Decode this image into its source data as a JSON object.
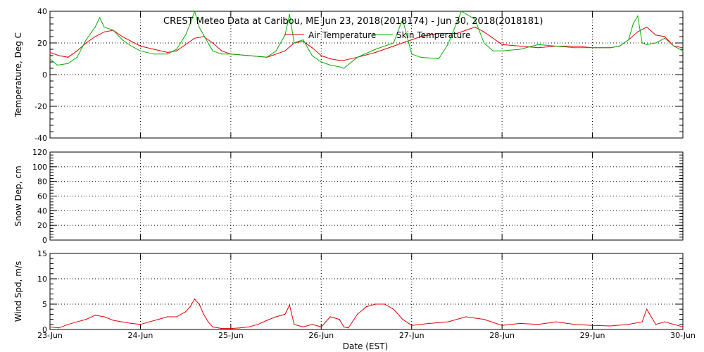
{
  "title": "CREST Meteo Data at Caribou, ME   Jun 23, 2018(2018174) - Jun 30, 2018(2018181)",
  "x_axis_label": "Date (EST)",
  "x_tick_labels": [
    "23-Jun",
    "24-Jun",
    "25-Jun",
    "26-Jun",
    "27-Jun",
    "28-Jun",
    "29-Jun",
    "30-Jun"
  ],
  "colors": {
    "air": "#e00000",
    "skin": "#00b000",
    "wind": "#e00000",
    "axis": "#000000",
    "grid": "#000000"
  },
  "chart_data": [
    {
      "type": "line",
      "panel": "temperature",
      "ylabel": "Temperature, Deg C",
      "ylim": [
        -40,
        40
      ],
      "y_ticks": [
        -40,
        -20,
        0,
        20,
        40
      ],
      "xlim": [
        0,
        7
      ],
      "x_unit": "days since 23-Jun 00:00 EST",
      "grid": true,
      "legend": "top-center",
      "series": [
        {
          "name": "Air Temperature",
          "color": "#e00000",
          "x": [
            0,
            0.1,
            0.2,
            0.3,
            0.4,
            0.5,
            0.6,
            0.7,
            0.8,
            1.0,
            1.15,
            1.3,
            1.4,
            1.5,
            1.6,
            1.7,
            1.8,
            1.9,
            2.0,
            2.2,
            2.4,
            2.6,
            2.7,
            2.8,
            2.9,
            3.0,
            3.1,
            3.2,
            3.25,
            3.4,
            3.6,
            3.8,
            4.0,
            4.1,
            4.3,
            4.5,
            4.6,
            4.7,
            4.8,
            5.0,
            5.2,
            5.4,
            5.6,
            5.8,
            6.0,
            6.2,
            6.3,
            6.4,
            6.5,
            6.6,
            6.7,
            6.8,
            6.9,
            7.0
          ],
          "y": [
            14,
            12,
            11,
            15,
            20,
            24,
            27,
            28,
            24,
            18,
            16,
            14,
            15,
            19,
            23,
            24,
            20,
            15,
            13,
            12,
            11,
            15,
            20,
            21,
            17,
            12,
            10,
            9,
            9,
            11,
            14,
            18,
            22,
            24,
            26,
            26,
            28,
            30,
            27,
            19,
            18,
            17,
            18,
            18,
            17,
            17,
            18,
            22,
            27,
            30,
            25,
            24,
            18,
            17
          ]
        },
        {
          "name": "Skin Temperature",
          "color": "#00b000",
          "x": [
            0,
            0.08,
            0.2,
            0.3,
            0.4,
            0.5,
            0.55,
            0.6,
            0.7,
            0.8,
            0.9,
            1.0,
            1.15,
            1.3,
            1.4,
            1.5,
            1.55,
            1.6,
            1.65,
            1.7,
            1.8,
            1.9,
            2.0,
            2.2,
            2.4,
            2.5,
            2.6,
            2.65,
            2.7,
            2.8,
            2.9,
            3.0,
            3.1,
            3.2,
            3.25,
            3.4,
            3.6,
            3.8,
            3.9,
            4.0,
            4.1,
            4.3,
            4.4,
            4.55,
            4.7,
            4.8,
            4.9,
            5.0,
            5.2,
            5.4,
            5.6,
            5.8,
            6.0,
            6.2,
            6.3,
            6.4,
            6.45,
            6.5,
            6.55,
            6.6,
            6.7,
            6.8,
            6.9,
            7.0
          ],
          "y": [
            10,
            6,
            7,
            11,
            22,
            30,
            36,
            30,
            28,
            22,
            18,
            15,
            13,
            13,
            16,
            25,
            32,
            40,
            30,
            25,
            15,
            13,
            13,
            12,
            11,
            15,
            25,
            38,
            20,
            22,
            12,
            8,
            6,
            5,
            4,
            11,
            16,
            20,
            35,
            13,
            11,
            10,
            19,
            41,
            35,
            20,
            15,
            15,
            16,
            19,
            18,
            17,
            17,
            17,
            18,
            22,
            32,
            37,
            20,
            19,
            20,
            23,
            18,
            15
          ]
        }
      ]
    },
    {
      "type": "line",
      "panel": "snow",
      "ylabel": "Snow Dep, cm",
      "ylim": [
        0,
        120
      ],
      "y_ticks": [
        0,
        20,
        40,
        60,
        80,
        100,
        120
      ],
      "xlim": [
        0,
        7
      ],
      "grid": true,
      "series": []
    },
    {
      "type": "line",
      "panel": "wind",
      "ylabel": "Wind Spd, m/s",
      "ylim": [
        0,
        15
      ],
      "y_ticks": [
        0,
        5,
        10,
        15
      ],
      "xlim": [
        0,
        7
      ],
      "grid": true,
      "series": [
        {
          "name": "Wind Speed",
          "color": "#e00000",
          "x": [
            0,
            0.1,
            0.2,
            0.3,
            0.4,
            0.5,
            0.6,
            0.7,
            0.8,
            0.9,
            1.0,
            1.1,
            1.2,
            1.3,
            1.4,
            1.5,
            1.55,
            1.6,
            1.65,
            1.7,
            1.75,
            1.8,
            1.9,
            2.0,
            2.1,
            2.2,
            2.3,
            2.4,
            2.5,
            2.6,
            2.65,
            2.7,
            2.8,
            2.9,
            3.0,
            3.05,
            3.1,
            3.2,
            3.25,
            3.3,
            3.4,
            3.5,
            3.6,
            3.7,
            3.8,
            3.9,
            4.0,
            4.2,
            4.4,
            4.6,
            4.8,
            5.0,
            5.2,
            5.4,
            5.6,
            5.8,
            6.0,
            6.2,
            6.4,
            6.55,
            6.6,
            6.7,
            6.8,
            6.9,
            7.0
          ],
          "y": [
            0.5,
            0.3,
            1,
            1.5,
            2,
            2.8,
            2.5,
            1.8,
            1.5,
            1.2,
            1,
            1.5,
            2,
            2.5,
            2.5,
            3.5,
            4.5,
            6,
            5,
            3,
            1.5,
            0.5,
            0.2,
            0.2,
            0.3,
            0.5,
            1,
            1.8,
            2.5,
            3,
            4.8,
            1,
            0.5,
            1,
            0.5,
            1.5,
            2.5,
            2,
            0.5,
            0.3,
            3,
            4.5,
            5,
            5,
            4,
            2,
            0.8,
            1.2,
            1.5,
            2.5,
            2,
            0.8,
            1.2,
            1,
            1.5,
            1,
            0.8,
            0.7,
            1,
            1.5,
            4,
            1,
            1.5,
            1,
            0.5
          ]
        }
      ]
    }
  ]
}
